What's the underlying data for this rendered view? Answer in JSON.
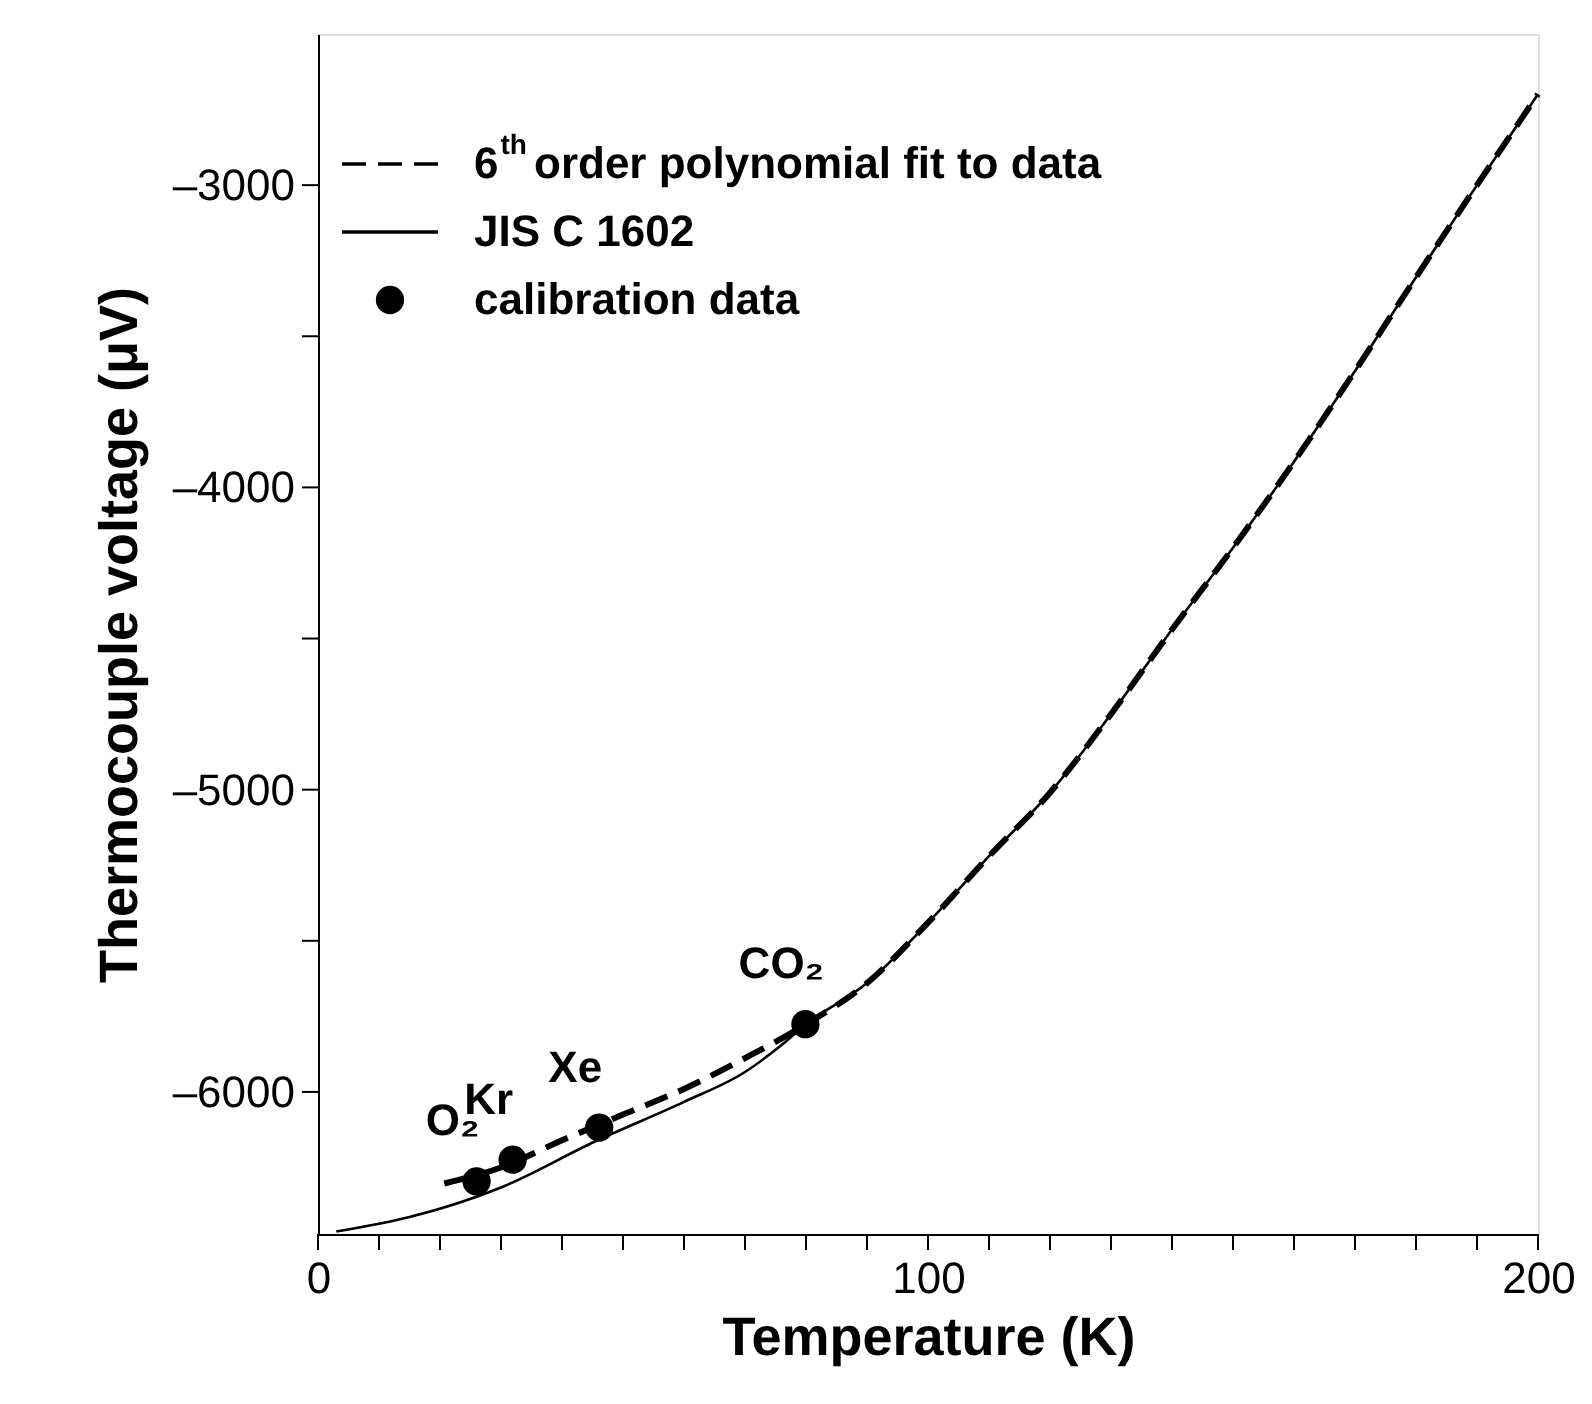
{
  "chart_data": {
    "type": "line",
    "xlabel": "Temperature (K)",
    "ylabel": "Thermocouple voltage (μV)",
    "xlim": [
      0,
      200
    ],
    "ylim": [
      -6470,
      -2500
    ],
    "xticks": [
      0,
      {
        "value": 10,
        "label": null
      },
      {
        "value": 20,
        "label": null
      },
      {
        "value": 30,
        "label": null
      },
      {
        "value": 40,
        "label": null
      },
      {
        "value": 50,
        "label": null
      },
      {
        "value": 60,
        "label": null
      },
      {
        "value": 70,
        "label": null
      },
      {
        "value": 80,
        "label": null
      },
      {
        "value": 90,
        "label": null
      },
      100,
      {
        "value": 110,
        "label": null
      },
      {
        "value": 120,
        "label": null
      },
      {
        "value": 130,
        "label": null
      },
      {
        "value": 140,
        "label": null
      },
      {
        "value": 150,
        "label": null
      },
      {
        "value": 160,
        "label": null
      },
      {
        "value": 170,
        "label": null
      },
      {
        "value": 180,
        "label": null
      },
      {
        "value": 190,
        "label": null
      },
      200
    ],
    "yticks": [
      {
        "value": -6000,
        "label": "–6000"
      },
      {
        "value": -5500,
        "label": null
      },
      {
        "value": -5000,
        "label": "–5000"
      },
      {
        "value": -4500,
        "label": null
      },
      {
        "value": -4000,
        "label": "–4000"
      },
      {
        "value": -3500,
        "label": null
      },
      {
        "value": -3000,
        "label": "–3000"
      }
    ],
    "grid": false,
    "legend": "top left",
    "series": [
      {
        "name": "6$^{th}$ order polynomial fit to data",
        "line_style": "dashed",
        "color": "#000000",
        "x": [
          20.7,
          30,
          40,
          50,
          60,
          70,
          80,
          90,
          100,
          110,
          120,
          130,
          140,
          150,
          160,
          170,
          180,
          190,
          200
        ],
        "values": [
          -6303,
          -6250,
          -6160,
          -6075,
          -5990,
          -5888,
          -5776,
          -5640,
          -5440,
          -5220,
          -5010,
          -4750,
          -4470,
          -4200,
          -3915,
          -3615,
          -3305,
          -3000,
          -2699
        ]
      },
      {
        "name": "JIS C 1602",
        "line_style": "solid",
        "color": "#000000",
        "x": [
          3,
          15,
          30,
          45.4,
          60,
          70,
          76,
          80,
          90,
          100,
          110,
          120,
          130,
          140,
          150,
          160,
          170,
          180,
          190,
          200
        ],
        "values": [
          -6462,
          -6414,
          -6316,
          -6164,
          -6033,
          -5934,
          -5845,
          -5776,
          -5640,
          -5440,
          -5220,
          -5010,
          -4750,
          -4470,
          -4200,
          -3915,
          -3615,
          -3305,
          -3000,
          -2699
        ]
      },
      {
        "name": "calibration data",
        "type": "scatter",
        "marker": "circle",
        "color": "#000000",
        "x": [
          26.0,
          31.9,
          46.1,
          79.9
        ],
        "values": [
          -6296,
          -6224,
          -6118,
          -5776
        ]
      }
    ],
    "annotations": [
      {
        "text": "O₂",
        "x": 26.0,
        "y": -6296
      },
      {
        "text": "Kr",
        "x": 31.9,
        "y": -6224
      },
      {
        "text": "Xe",
        "x": 46.1,
        "y": -6118
      },
      {
        "text": "CO₂",
        "x": 79.9,
        "y": -5776
      }
    ]
  }
}
